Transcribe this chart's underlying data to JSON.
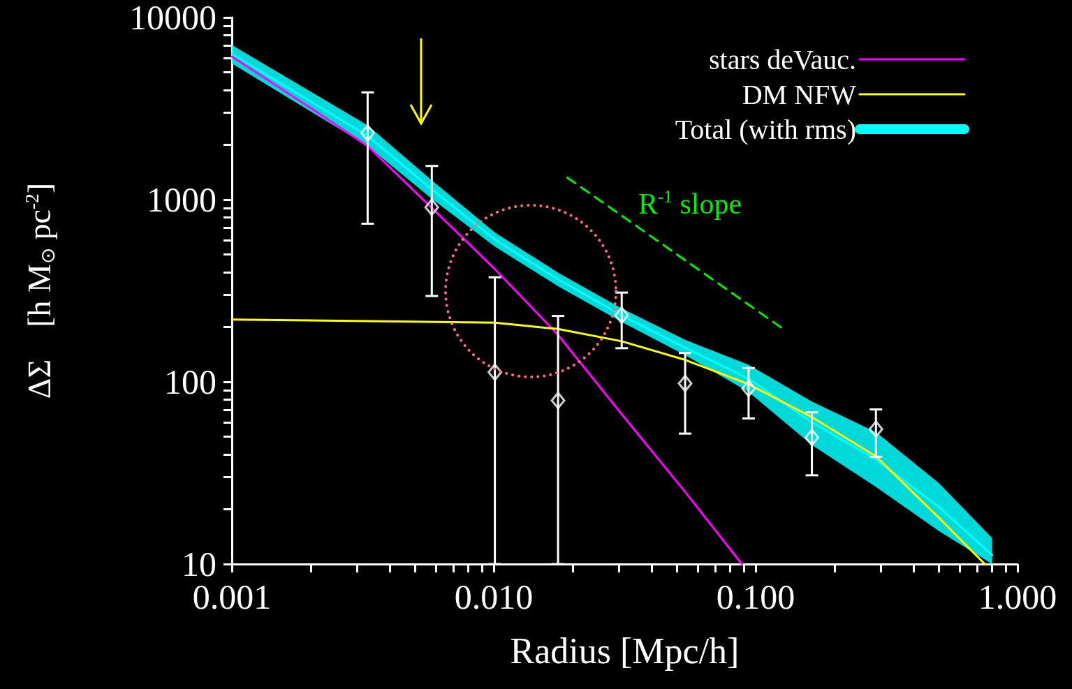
{
  "chart_data": {
    "type": "line",
    "xlabel": "Radius [Mpc/h]",
    "ylabel": "ΔΣ    [h M$_{⊙}$ pc$^{-2}$]",
    "log": "xy",
    "xlim": [
      0.001,
      1.0
    ],
    "xticks": [
      {
        "value": 0.001,
        "label": "0.001"
      },
      {
        "value": 0.002,
        "label": null
      },
      {
        "value": 0.003,
        "label": null
      },
      {
        "value": 0.004,
        "label": null
      },
      {
        "value": 0.005,
        "label": null
      },
      {
        "value": 0.006,
        "label": null
      },
      {
        "value": 0.007,
        "label": null
      },
      {
        "value": 0.008,
        "label": null
      },
      {
        "value": 0.009,
        "label": null
      },
      {
        "value": 0.01,
        "label": "0.010"
      },
      {
        "value": 0.02,
        "label": null
      },
      {
        "value": 0.03,
        "label": null
      },
      {
        "value": 0.04,
        "label": null
      },
      {
        "value": 0.05,
        "label": null
      },
      {
        "value": 0.06,
        "label": null
      },
      {
        "value": 0.07,
        "label": null
      },
      {
        "value": 0.08,
        "label": null
      },
      {
        "value": 0.09,
        "label": null
      },
      {
        "value": 0.1,
        "label": "0.100"
      },
      {
        "value": 0.2,
        "label": null
      },
      {
        "value": 0.3,
        "label": null
      },
      {
        "value": 0.4,
        "label": null
      },
      {
        "value": 0.5,
        "label": null
      },
      {
        "value": 0.6,
        "label": null
      },
      {
        "value": 0.7,
        "label": null
      },
      {
        "value": 0.8,
        "label": null
      },
      {
        "value": 0.9,
        "label": null
      },
      {
        "value": 1.0,
        "label": "1.000"
      }
    ],
    "ylim": [
      10,
      10000
    ],
    "yticks": [
      10,
      {
        "value": 20,
        "label": null
      },
      {
        "value": 30,
        "label": null
      },
      {
        "value": 40,
        "label": null
      },
      {
        "value": 50,
        "label": null
      },
      {
        "value": 60,
        "label": null
      },
      {
        "value": 70,
        "label": null
      },
      {
        "value": 80,
        "label": null
      },
      {
        "value": 90,
        "label": null
      },
      100,
      {
        "value": 200,
        "label": null
      },
      {
        "value": 300,
        "label": null
      },
      {
        "value": 400,
        "label": null
      },
      {
        "value": 500,
        "label": null
      },
      {
        "value": 600,
        "label": null
      },
      {
        "value": 700,
        "label": null
      },
      {
        "value": 800,
        "label": null
      },
      {
        "value": 900,
        "label": null
      },
      1000,
      {
        "value": 2000,
        "label": null
      },
      {
        "value": 3000,
        "label": null
      },
      {
        "value": 4000,
        "label": null
      },
      {
        "value": 5000,
        "label": null
      },
      {
        "value": 6000,
        "label": null
      },
      {
        "value": 7000,
        "label": null
      },
      {
        "value": 8000,
        "label": null
      },
      {
        "value": 9000,
        "label": null
      },
      10000
    ],
    "grid": false,
    "legend": "top right",
    "series": [
      {
        "name": "stars deVauc.",
        "color": "#ff00ff",
        "x": [
          0.001,
          0.002,
          0.0033,
          0.0058,
          0.0101,
          0.0176,
          0.0308,
          0.0538,
          0.0886
        ],
        "values": [
          6100,
          3180,
          1970,
          900,
          416,
          181,
          66.5,
          24.9,
          10
        ]
      },
      {
        "name": "DM NFW",
        "color": "#ffff00",
        "x": [
          0.001,
          0.0101,
          0.0176,
          0.0308,
          0.0538,
          0.094,
          0.164,
          0.288,
          0.5,
          0.75
        ],
        "values": [
          220,
          211,
          195,
          167,
          132,
          97,
          64,
          39,
          18,
          10
        ]
      },
      {
        "name": "Total (with rms)",
        "color": "#00ffff",
        "x": [
          0.001,
          0.0033,
          0.0058,
          0.0101,
          0.0176,
          0.0308,
          0.0538,
          0.094,
          0.164,
          0.288,
          0.5,
          0.8
        ],
        "values": [
          6310,
          2240,
          1140,
          604,
          365,
          232,
          154,
          104,
          60,
          37.5,
          20.6,
          11.2
        ],
        "lower": [
          5590,
          1970,
          1010,
          553,
          335,
          213,
          140,
          88,
          45,
          26.5,
          15.2,
          10
        ],
        "upper": [
          7060,
          2560,
          1277,
          661,
          398,
          253,
          170,
          124,
          78,
          53,
          27.9,
          13.9
        ]
      },
      {
        "type": "scatter",
        "color": "#ffffff",
        "marker": "diamond",
        "x": [
          0.0033,
          0.0058,
          0.0101,
          0.0176,
          0.0308,
          0.0538,
          0.094,
          0.164,
          0.288
        ],
        "values": [
          2320,
          908,
          113,
          79,
          232,
          98,
          92,
          49.5,
          55
        ],
        "errors": [
          [
            738,
            3880
          ],
          [
            296,
            1531
          ],
          [
            10,
            375
          ],
          [
            10,
            230
          ],
          [
            153,
            309
          ],
          [
            52,
            144
          ],
          [
            63,
            119
          ],
          [
            30.7,
            68
          ],
          [
            38.8,
            70.6
          ]
        ]
      },
      {
        "color": "#00ee00",
        "line_style": "dashed",
        "x": [
          0.0191,
          0.125
        ],
        "values": [
          1321,
          199
        ]
      }
    ],
    "annotations": [
      "R$^{-1}$ slope"
    ]
  }
}
